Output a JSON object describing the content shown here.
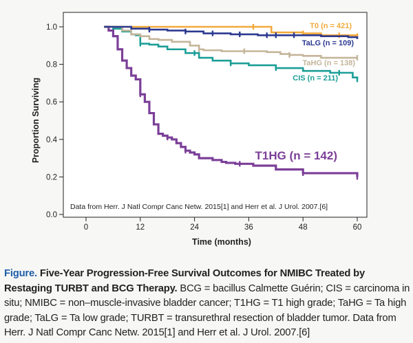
{
  "chart_data": {
    "type": "line",
    "title": "",
    "xlabel": "Time (months)",
    "ylabel": "Proportion Surviving",
    "xlim": [
      -5,
      61
    ],
    "ylim": [
      0.0,
      1.0
    ],
    "xticks": [
      0,
      12,
      24,
      36,
      48,
      60
    ],
    "yticks": [
      0.0,
      0.2,
      0.4,
      0.6,
      0.8,
      1.0
    ],
    "xtick_labels": [
      "0",
      "12",
      "24",
      "36",
      "48",
      "60"
    ],
    "ytick_labels": [
      "0.0",
      "0.2",
      "0.4",
      "0.6",
      "0.8",
      "1.0"
    ],
    "grid": false,
    "annotation": "Data from Herr. J Natl Compr Canc Netw. 2015[1] and Herr et al. J Urol. 2007.[6]",
    "series": [
      {
        "name": "T0 (n = 421)",
        "color": "#f2a93b",
        "step": true,
        "x": [
          4,
          40,
          41,
          48,
          52,
          60
        ],
        "y": [
          1.0,
          1.0,
          0.97,
          0.965,
          0.955,
          0.95
        ],
        "censor_x": [
          37,
          48,
          56,
          60
        ]
      },
      {
        "name": "TaLG (n = 109)",
        "color": "#2b3990",
        "step": true,
        "x": [
          4,
          10,
          14,
          18,
          22,
          26,
          32,
          38,
          46,
          52,
          58,
          60
        ],
        "y": [
          1.0,
          0.99,
          0.985,
          0.98,
          0.975,
          0.965,
          0.96,
          0.955,
          0.955,
          0.95,
          0.945,
          0.935
        ],
        "censor_x": [
          14,
          22,
          28,
          34,
          40,
          42,
          46
        ]
      },
      {
        "name": "TaHG (n = 138)",
        "color": "#c4b59a",
        "step": true,
        "x": [
          4,
          8,
          10,
          12,
          14,
          16,
          19,
          23,
          25,
          26,
          30,
          36,
          40,
          43,
          45,
          48,
          52,
          60
        ],
        "y": [
          1.0,
          0.98,
          0.96,
          0.95,
          0.935,
          0.93,
          0.92,
          0.9,
          0.88,
          0.875,
          0.87,
          0.87,
          0.865,
          0.855,
          0.85,
          0.845,
          0.835,
          0.835
        ],
        "censor_x": [
          25,
          35,
          45,
          60
        ]
      },
      {
        "name": "CIS (n = 211)",
        "color": "#1a9e96",
        "step": true,
        "x": [
          4,
          6,
          8,
          10,
          11,
          12,
          14,
          16,
          18,
          22,
          25,
          28,
          32,
          36,
          42,
          48,
          54,
          59,
          60
        ],
        "y": [
          1.0,
          0.99,
          0.975,
          0.96,
          0.955,
          0.91,
          0.905,
          0.895,
          0.88,
          0.86,
          0.835,
          0.82,
          0.805,
          0.795,
          0.78,
          0.765,
          0.755,
          0.73,
          0.72
        ],
        "censor_x": [
          12,
          24,
          32,
          42,
          56,
          60
        ]
      },
      {
        "name": "T1HG (n = 142)",
        "color": "#7b3f98",
        "step": true,
        "x": [
          4,
          5,
          6,
          7,
          8,
          9,
          10,
          11,
          12,
          13,
          14,
          15,
          16,
          17,
          18,
          19,
          20,
          21,
          22,
          23,
          24,
          25,
          28,
          30,
          31,
          33,
          37,
          42,
          48,
          60
        ],
        "y": [
          1.0,
          0.98,
          0.95,
          0.88,
          0.82,
          0.78,
          0.74,
          0.72,
          0.64,
          0.6,
          0.54,
          0.48,
          0.43,
          0.42,
          0.41,
          0.4,
          0.38,
          0.36,
          0.34,
          0.33,
          0.32,
          0.3,
          0.29,
          0.28,
          0.275,
          0.27,
          0.26,
          0.24,
          0.22,
          0.2
        ],
        "censor_x": [
          12,
          18,
          22,
          34,
          48,
          60
        ]
      }
    ],
    "series_label_positions": "right-side, above each curve"
  },
  "caption": {
    "label": "Figure.",
    "title": "Five-Year Progression-Free Survival Outcomes for NMIBC Treated by Restaging TURBT and BCG Therapy.",
    "body": "BCG = bacillus Calmette Guérin; CIS = carcinoma in situ; NMIBC = non–muscle-invasive bladder cancer; T1HG = T1 high grade; TaHG = Ta high grade; TaLG = Ta low grade; TURBT = transurethral resection of bladder tumor. Data from Herr. J Natl Compr Canc Netw. 2015[1] and Herr et al. J Urol. 2007.[6]"
  }
}
